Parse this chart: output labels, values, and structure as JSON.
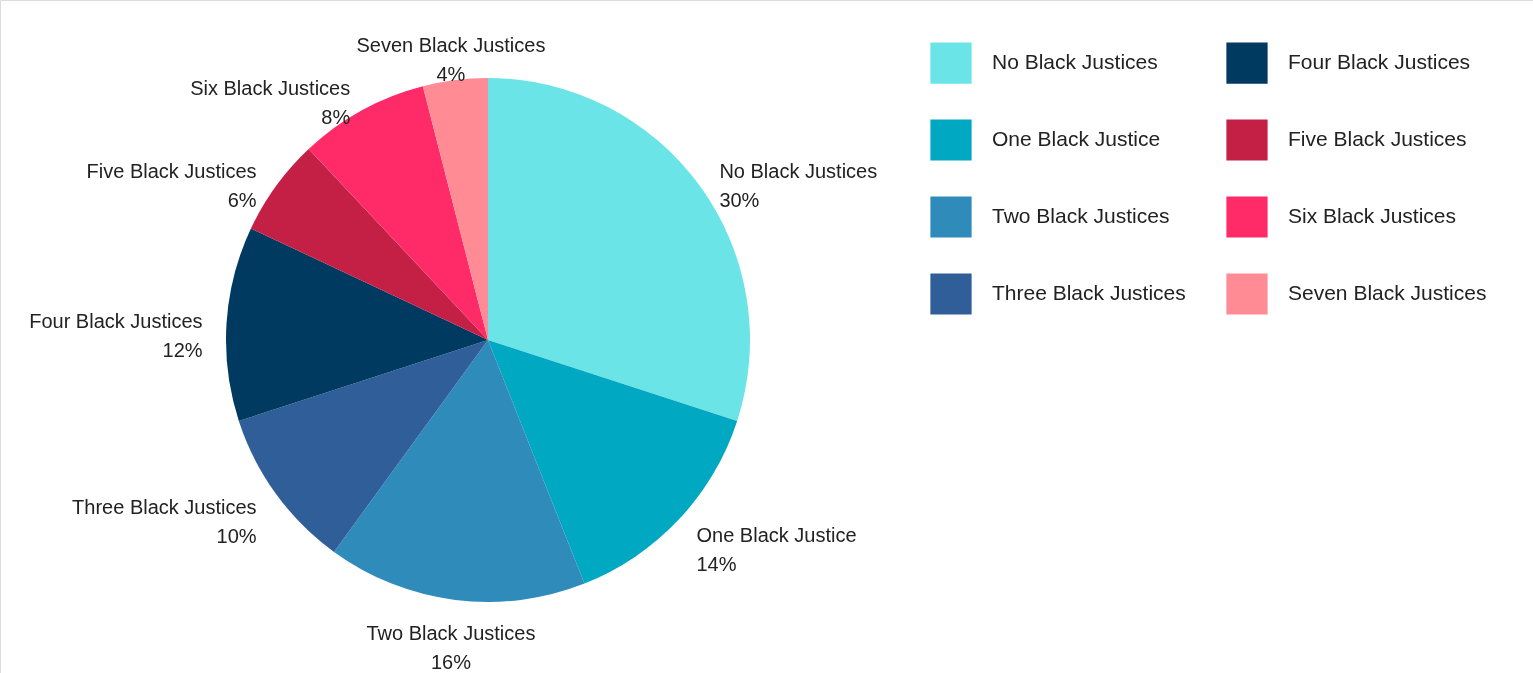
{
  "chart_data": {
    "type": "pie",
    "categories": [
      "No Black Justices",
      "One Black Justice",
      "Two Black Justices",
      "Three Black Justices",
      "Four Black Justices",
      "Five Black Justices",
      "Six Black Justices",
      "Seven Black Justices"
    ],
    "values": [
      30,
      14,
      16,
      10,
      12,
      6,
      8,
      4
    ],
    "value_labels": [
      "30%",
      "14%",
      "16%",
      "10%",
      "12%",
      "6%",
      "8%",
      "4%"
    ],
    "colors": [
      "#6be4e8",
      "#00a8c2",
      "#2e8bba",
      "#2f5e98",
      "#003a61",
      "#c42045",
      "#ff2a68",
      "#ff8b95"
    ],
    "legend": "right"
  }
}
